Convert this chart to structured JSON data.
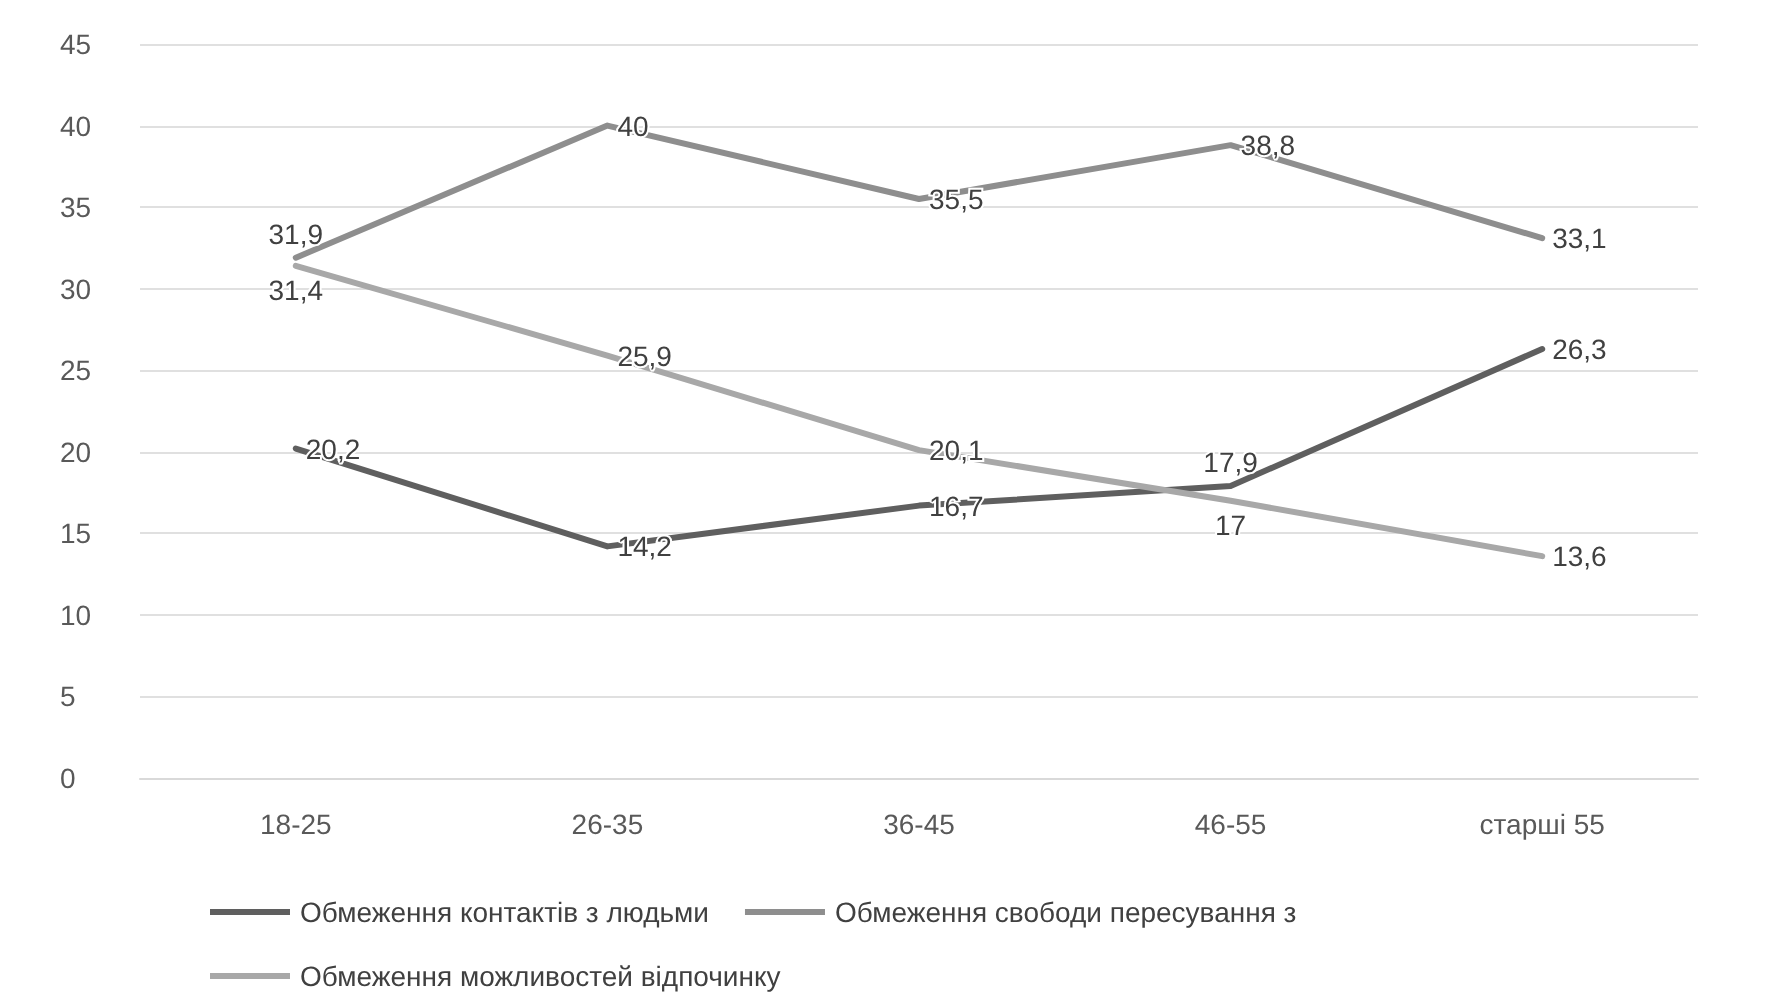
{
  "chart_data": {
    "type": "line",
    "categories": [
      "18-25",
      "26-35",
      "36-45",
      "46-55",
      "старші 55"
    ],
    "series": [
      {
        "name": "Обмеження контактів з людьми",
        "color": "#5f5f5f",
        "values": [
          20.2,
          14.2,
          16.7,
          17.9,
          26.3
        ],
        "value_labels": [
          "20,2",
          "14,2",
          "16,7",
          "17,9",
          "26,3"
        ]
      },
      {
        "name": "Обмеження свободи пересування з",
        "color": "#8e8e8e",
        "values": [
          31.9,
          40,
          35.5,
          38.8,
          33.1
        ],
        "value_labels": [
          "31,9",
          "40",
          "35,5",
          "38,8",
          "33,1"
        ]
      },
      {
        "name": "Обмеження можливостей відпочинку",
        "color": "#a8a8a8",
        "values": [
          31.4,
          25.9,
          20.1,
          17,
          13.6
        ],
        "value_labels": [
          "31,4",
          "25,9",
          "20,1",
          "17",
          "13,6"
        ]
      }
    ],
    "ylim": [
      0,
      45
    ],
    "yticks": [
      0,
      5,
      10,
      15,
      20,
      25,
      30,
      35,
      40,
      45
    ],
    "grid": "y",
    "legend": "bottom",
    "marker": "none",
    "line_style": "solid"
  }
}
